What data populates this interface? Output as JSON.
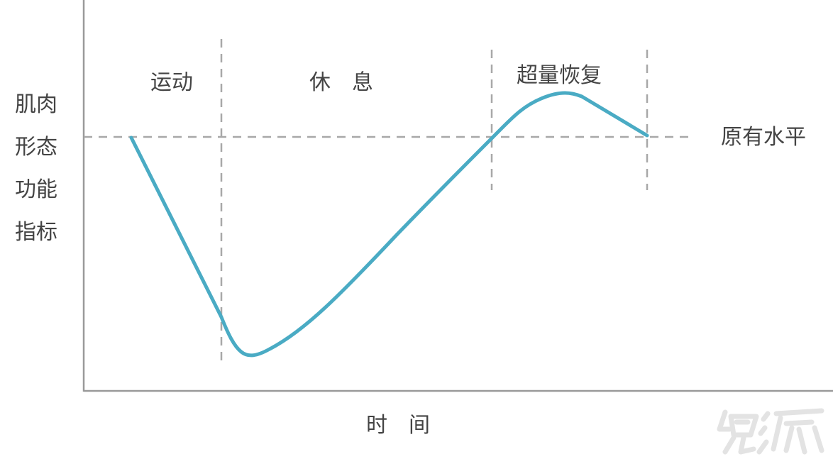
{
  "diagram": {
    "y_axis_label": [
      "肌肉",
      "形态",
      "功能",
      "指标"
    ],
    "x_axis_label": "时　间",
    "phases": {
      "exercise": "运动",
      "rest": "休　息",
      "supercompensation": "超量恢复"
    },
    "baseline_label": "原有水平",
    "colors": {
      "curve": "#4aabc4",
      "axes": "#9a9a9a",
      "dashed": "#a8a8a8",
      "text": "#444444"
    }
  },
  "watermark": {
    "icon": "brand-logo-watermark",
    "color": "#e3e3e3"
  }
}
